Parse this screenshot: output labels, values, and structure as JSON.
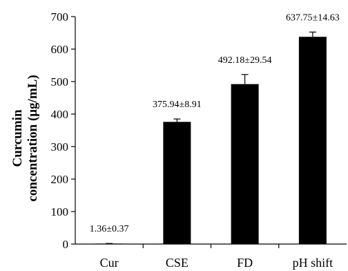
{
  "chart_data": {
    "type": "bar",
    "categories": [
      "Cur",
      "CSE",
      "FD",
      "pH shift"
    ],
    "values": [
      1.36,
      375.94,
      492.18,
      637.75
    ],
    "errors": [
      0.37,
      8.91,
      29.54,
      14.63
    ],
    "data_labels": [
      "1.36±0.37",
      "375.94±8.91",
      "492.18±29.54",
      "637.75±14.63"
    ],
    "ylabel_lines": [
      "Curcumin",
      "concentration (μg/mL)"
    ],
    "ylim": [
      0,
      700
    ],
    "yticks": [
      0,
      100,
      200,
      300,
      400,
      500,
      600,
      700
    ],
    "bar_color": "#000000",
    "grid": false,
    "legend": "none"
  }
}
